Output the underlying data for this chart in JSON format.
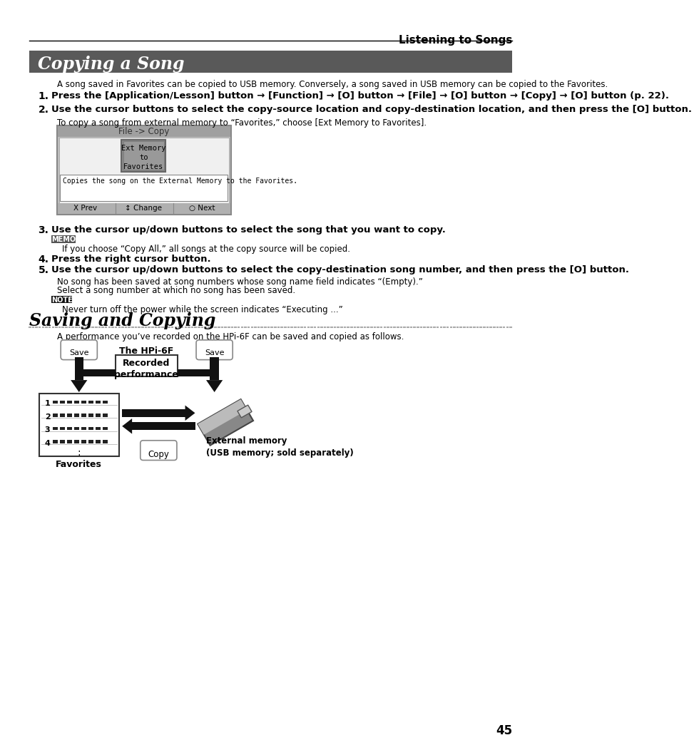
{
  "page_bg": "#ffffff",
  "header_text": "Listening to Songs",
  "section1_title": "Copying a Song",
  "section1_title_bg": "#555555",
  "section1_title_color": "#ffffff",
  "section1_intro": "A song saved in Favorites can be copied to USB memory. Conversely, a song saved in USB memory can be copied to the Favorites.",
  "step1_text": "Press the [Application/Lesson] button → [Function] → [O] button → [File] → [O] button → [Copy] → [O] button (p. 22).",
  "step2_text": "Use the cursor buttons to select the copy-source location and copy-destination location, and then press the [O] button.",
  "step2_sub": "To copy a song from external memory to “Favorites,” choose [Ext Memory to Favorites].",
  "screen_title": "File -> Copy",
  "screen_button": "Ext Memory\nto\nFavorites",
  "screen_desc": "Copies the song on the External Memory to the Favorites.",
  "screen_btn1": "X Prev",
  "screen_btn2": "↕ Change",
  "screen_btn3": "○ Next",
  "step3_text": "Use the cursor up/down buttons to select the song that you want to copy.",
  "memo_text": "If you choose “Copy All,” all songs at the copy source will be copied.",
  "step4_text": "Press the right cursor button.",
  "step5_text": "Use the cursor up/down buttons to select the copy-destination song number, and then press the [O] button.",
  "step5_sub1": "No song has been saved at song numbers whose song name field indicates “(Empty).”",
  "step5_sub2": "Select a song number at which no song has been saved.",
  "note_text": "Never turn off the power while the screen indicates “Executing ...”",
  "section2_title": "Saving and Copying",
  "section2_intro": "A performance you’ve recorded on the HPi-6F can be saved and copied as follows.",
  "save_label": "Save",
  "hpi6f_label": "The HPi-6F",
  "recorded_label": "Recorded\nperformance",
  "favorites_label": "Favorites",
  "copy_label": "Copy",
  "ext_memory_label": "External memory\n(USB memory; sold separately)",
  "page_number": "45"
}
